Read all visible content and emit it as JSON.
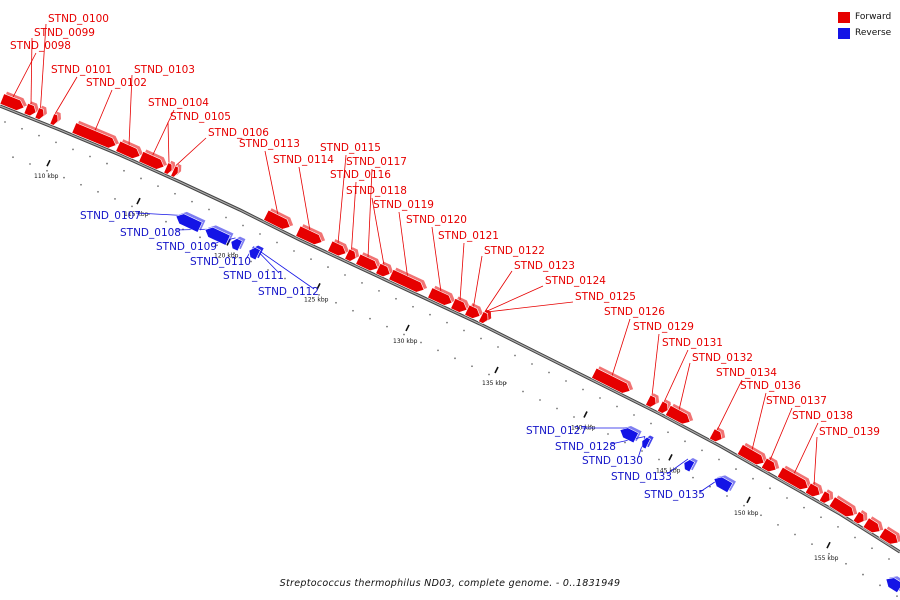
{
  "legend": {
    "forward_label": "Forward",
    "reverse_label": "Reverse",
    "forward_color": "#e60000",
    "reverse_color": "#1414e6"
  },
  "caption": "Streptococcus thermophilus ND03, complete genome. - 0..1831949",
  "ticks": [
    {
      "label": "110 kbp",
      "kbp": 110
    },
    {
      "label": "115 kbp",
      "kbp": 115
    },
    {
      "label": "120 kbp",
      "kbp": 120
    },
    {
      "label": "125 kbp",
      "kbp": 125
    },
    {
      "label": "130 kbp",
      "kbp": 130
    },
    {
      "label": "135 kbp",
      "kbp": 135
    },
    {
      "label": "140 kbp",
      "kbp": 140
    },
    {
      "label": "145 kbp",
      "kbp": 145
    },
    {
      "label": "150 kbp",
      "kbp": 150
    },
    {
      "label": "155 kbp",
      "kbp": 155
    }
  ],
  "genes": [
    {
      "name": "STND_0098",
      "strand": "forward"
    },
    {
      "name": "STND_0099",
      "strand": "forward"
    },
    {
      "name": "STND_0100",
      "strand": "forward"
    },
    {
      "name": "STND_0101",
      "strand": "forward"
    },
    {
      "name": "STND_0102",
      "strand": "forward"
    },
    {
      "name": "STND_0103",
      "strand": "forward"
    },
    {
      "name": "STND_0104",
      "strand": "forward"
    },
    {
      "name": "STND_0105",
      "strand": "forward"
    },
    {
      "name": "STND_0106",
      "strand": "forward"
    },
    {
      "name": "STND_0107",
      "strand": "reverse"
    },
    {
      "name": "STND_0108",
      "strand": "reverse"
    },
    {
      "name": "STND_0109",
      "strand": "reverse"
    },
    {
      "name": "STND_0110",
      "strand": "reverse"
    },
    {
      "name": "STND_0111",
      "strand": "reverse"
    },
    {
      "name": "STND_0112",
      "strand": "reverse"
    },
    {
      "name": "STND_0113",
      "strand": "forward"
    },
    {
      "name": "STND_0114",
      "strand": "forward"
    },
    {
      "name": "STND_0115",
      "strand": "forward"
    },
    {
      "name": "STND_0116",
      "strand": "forward"
    },
    {
      "name": "STND_0117",
      "strand": "forward"
    },
    {
      "name": "STND_0118",
      "strand": "forward"
    },
    {
      "name": "STND_0119",
      "strand": "forward"
    },
    {
      "name": "STND_0120",
      "strand": "forward"
    },
    {
      "name": "STND_0121",
      "strand": "forward"
    },
    {
      "name": "STND_0122",
      "strand": "forward"
    },
    {
      "name": "STND_0123",
      "strand": "forward"
    },
    {
      "name": "STND_0124",
      "strand": "forward"
    },
    {
      "name": "STND_0125",
      "strand": "forward"
    },
    {
      "name": "STND_0126",
      "strand": "forward"
    },
    {
      "name": "STND_0127",
      "strand": "reverse"
    },
    {
      "name": "STND_0128",
      "strand": "reverse"
    },
    {
      "name": "STND_0129",
      "strand": "forward"
    },
    {
      "name": "STND_0130",
      "strand": "reverse"
    },
    {
      "name": "STND_0131",
      "strand": "forward"
    },
    {
      "name": "STND_0132",
      "strand": "forward"
    },
    {
      "name": "STND_0133",
      "strand": "reverse"
    },
    {
      "name": "STND_0134",
      "strand": "forward"
    },
    {
      "name": "STND_0135",
      "strand": "reverse"
    },
    {
      "name": "STND_0136",
      "strand": "forward"
    },
    {
      "name": "STND_0137",
      "strand": "forward"
    },
    {
      "name": "STND_0138",
      "strand": "forward"
    },
    {
      "name": "STND_0139",
      "strand": "forward"
    }
  ]
}
